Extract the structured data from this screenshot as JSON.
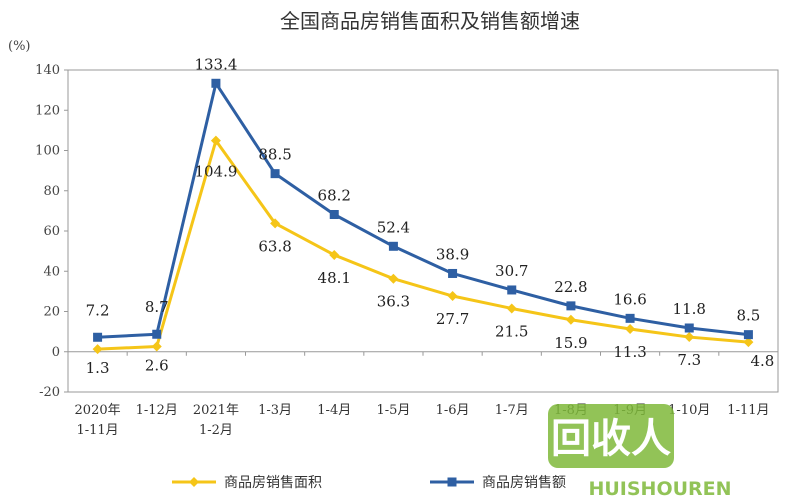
{
  "chart_data": {
    "type": "line",
    "title": "全国商品房销售面积及销售额增速",
    "unit_label": "(%)",
    "categories": [
      "2020年|1-11月",
      "1-12月",
      "2021年|1-2月",
      "1-3月",
      "1-4月",
      "1-5月",
      "1-6月",
      "1-7月",
      "1-8月",
      "1-9月",
      "1-10月",
      "1-11月"
    ],
    "series": [
      {
        "name": "商品房销售面积",
        "color": "#F5C518",
        "marker": "diamond",
        "values": [
          1.3,
          2.6,
          104.9,
          63.8,
          48.1,
          36.3,
          27.7,
          21.5,
          15.9,
          11.3,
          7.3,
          4.8
        ]
      },
      {
        "name": "商品房销售额",
        "color": "#2E5FA3",
        "marker": "square",
        "values": [
          7.2,
          8.7,
          133.4,
          88.5,
          68.2,
          52.4,
          38.9,
          30.7,
          22.8,
          16.6,
          11.8,
          8.5
        ]
      }
    ],
    "ylim": [
      -20,
      140
    ],
    "yticks": [
      -20,
      0,
      20,
      40,
      60,
      80,
      100,
      120,
      140
    ],
    "grid": false,
    "legend_position": "bottom"
  },
  "watermark": {
    "text_top": "回收人",
    "text_bottom": "HUISHOUREN"
  }
}
